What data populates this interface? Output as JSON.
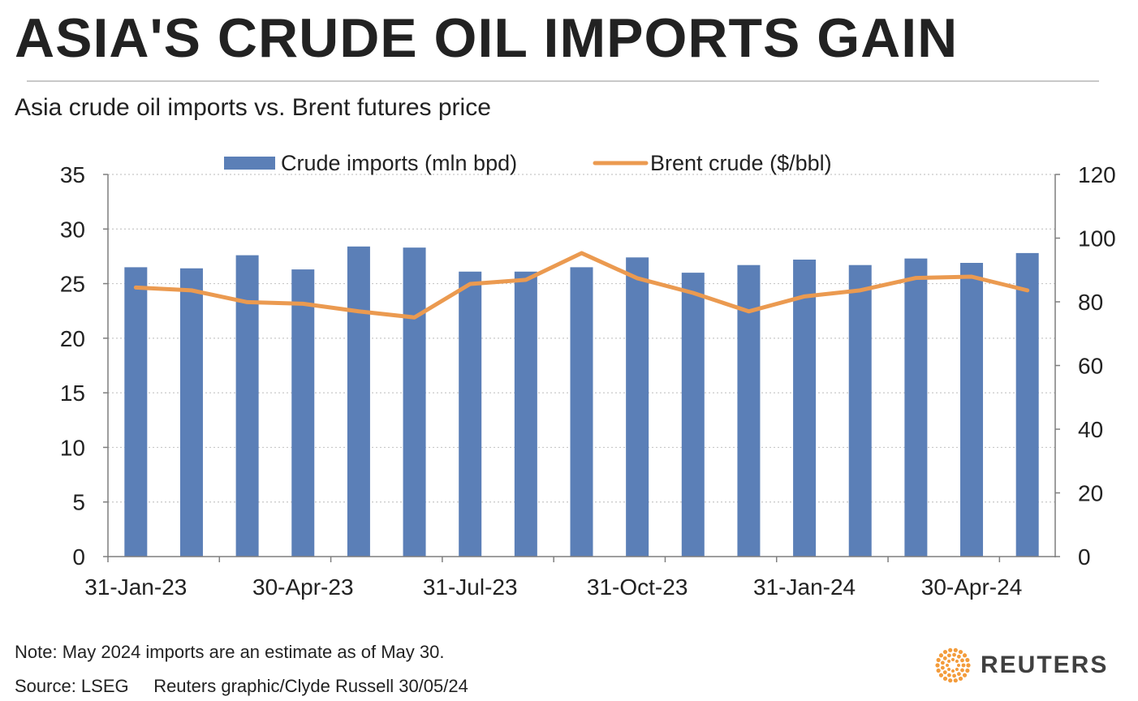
{
  "header": {
    "title": "ASIA'S CRUDE OIL IMPORTS GAIN",
    "subtitle": "Asia crude oil imports vs. Brent futures price"
  },
  "footer": {
    "note": "Note: May 2024 imports are an estimate as of May 30.",
    "source": "Source: LSEG     Reuters graphic/Clyde Russell 30/05/24",
    "logo_text": "REUTERS"
  },
  "colors": {
    "bars": "#5b7fb7",
    "line": "#eb9a50",
    "grid": "#c8c8c8",
    "axis": "#7f7f7f",
    "logo_orange": "#f39c3c"
  },
  "chart_data": {
    "type": "bar",
    "title": "ASIA'S CRUDE OIL IMPORTS GAIN",
    "subtitle": "Asia crude oil imports vs. Brent futures price",
    "categories": [
      "Jan-23",
      "Feb-23",
      "Mar-23",
      "Apr-23",
      "May-23",
      "Jun-23",
      "Jul-23",
      "Aug-23",
      "Sep-23",
      "Oct-23",
      "Nov-23",
      "Dec-23",
      "Jan-24",
      "Feb-24",
      "Mar-24",
      "Apr-24",
      "May-24"
    ],
    "x_tick_labels": [
      "31-Jan-23",
      "30-Apr-23",
      "31-Jul-23",
      "31-Oct-23",
      "31-Jan-24",
      "30-Apr-24"
    ],
    "x_tick_label_indices": [
      0,
      3,
      6,
      9,
      12,
      15
    ],
    "series": [
      {
        "name": "Crude imports (mln bpd)",
        "type": "bar",
        "axis": "left",
        "values": [
          26.5,
          26.4,
          27.6,
          26.3,
          28.4,
          28.3,
          26.1,
          26.1,
          26.5,
          27.4,
          26.0,
          26.7,
          27.2,
          26.7,
          27.3,
          26.9,
          27.8
        ]
      },
      {
        "name": "Brent crude ($/bbl)",
        "type": "line",
        "axis": "right",
        "values": [
          84.5,
          83.6,
          79.9,
          79.4,
          77.0,
          75.1,
          85.6,
          86.9,
          95.3,
          87.4,
          82.8,
          77.0,
          81.7,
          83.6,
          87.5,
          87.9,
          83.6
        ]
      }
    ],
    "y_left": {
      "min": 0,
      "max": 35,
      "ticks": [
        0,
        5,
        10,
        15,
        20,
        25,
        30,
        35
      ]
    },
    "y_right": {
      "min": 0,
      "max": 120,
      "ticks": [
        0,
        20,
        40,
        60,
        80,
        100,
        120
      ]
    },
    "grid": true,
    "legend": "top"
  }
}
